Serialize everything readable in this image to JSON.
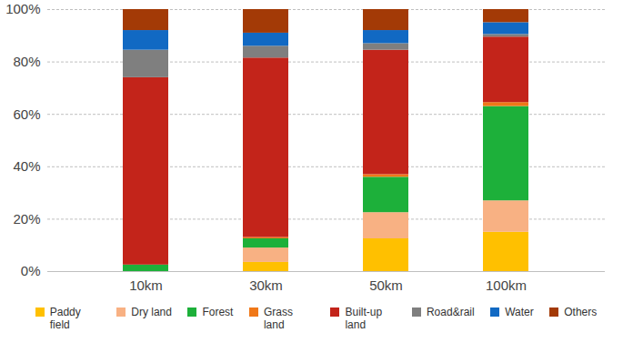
{
  "chart_data": {
    "type": "bar",
    "stacked": true,
    "grid": true,
    "legend": "bottom",
    "categories": [
      "10km",
      "30km",
      "50km",
      "100km"
    ],
    "series": [
      {
        "name": "Paddy field",
        "color": "#ffc000",
        "values": [
          0,
          3.5,
          12.5,
          15
        ]
      },
      {
        "name": "Dry land",
        "color": "#f8b183",
        "values": [
          0,
          5.5,
          10,
          12
        ]
      },
      {
        "name": "Forest",
        "color": "#1db03a",
        "values": [
          2.5,
          3.5,
          13.5,
          36
        ]
      },
      {
        "name": "Grass land",
        "color": "#f07818",
        "values": [
          0,
          0.5,
          1,
          1.5
        ]
      },
      {
        "name": "Built-up land",
        "color": "#c3241a",
        "values": [
          71.5,
          68.5,
          47.5,
          25
        ]
      },
      {
        "name": "Road&rail",
        "color": "#7f7f7f",
        "values": [
          10.5,
          4.5,
          2.5,
          1
        ]
      },
      {
        "name": "Water",
        "color": "#1169c3",
        "values": [
          7.5,
          5,
          5,
          4.5
        ]
      },
      {
        "name": "Others",
        "color": "#a33a06",
        "values": [
          8,
          9,
          8,
          5
        ]
      }
    ],
    "ylim": [
      0,
      100
    ],
    "yticks": [
      {
        "value": 0,
        "label": "0%"
      },
      {
        "value": 20,
        "label": "20%"
      },
      {
        "value": 40,
        "label": "40%"
      },
      {
        "value": 60,
        "label": "60%"
      },
      {
        "value": 80,
        "label": "80%"
      },
      {
        "value": 100,
        "label": "100%"
      }
    ]
  }
}
